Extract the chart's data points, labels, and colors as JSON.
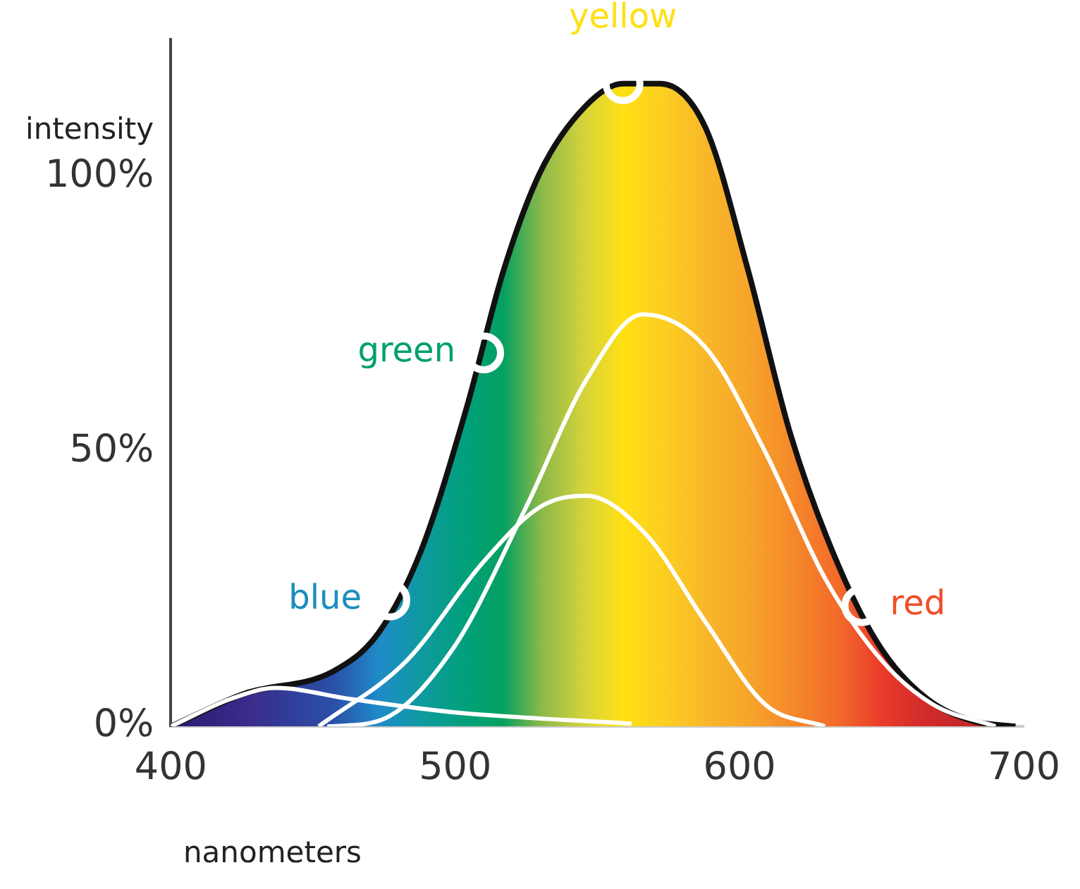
{
  "chart_data": {
    "type": "area",
    "xlabel": "nanometers",
    "ylabel": "intensity",
    "xlim": [
      400,
      700
    ],
    "ylim": [
      0,
      125
    ],
    "xticks": [
      400,
      500,
      600,
      700
    ],
    "yticks": [
      {
        "value": 0,
        "label": "0%"
      },
      {
        "value": 50,
        "label": "50%"
      },
      {
        "value": 100,
        "label": "100%"
      }
    ],
    "grid": false,
    "legend": false,
    "marker": "none",
    "series": [
      {
        "type": "area",
        "color": "#111111",
        "x": [
          400,
          426,
          457,
          473,
          488,
          504,
          517,
          530,
          546,
          559,
          572,
          588,
          603,
          618,
          635,
          650,
          666,
          682,
          697
        ],
        "values": [
          0,
          6,
          10,
          17,
          32,
          58,
          83,
          101,
          113,
          117,
          117,
          109,
          83,
          53,
          29,
          14,
          5,
          1,
          0
        ],
        "colors": [
          "#2a1a6e",
          "#3a2a8a",
          "#2a4fa8",
          "#1f8ac8",
          "#0f9aa0",
          "#00a07a",
          "#05a060",
          "#8ab84a",
          "#d8d43a",
          "#ffe014",
          "#fdd020",
          "#f8b82a",
          "#f7a52a",
          "#f58a2a",
          "#f26a2a",
          "#ea3a2a",
          "#d02a2a",
          "#c02828",
          "#b82828"
        ]
      },
      {
        "type": "line",
        "color": "#ffffff",
        "x": [
          455,
          473,
          499,
          525,
          546,
          566,
          588,
          609,
          630,
          650,
          668,
          690
        ],
        "values": [
          0,
          1,
          14,
          40,
          63,
          75,
          69,
          50,
          27,
          12,
          4,
          0
        ]
      },
      {
        "type": "line",
        "color": "#ffffff",
        "x": [
          452,
          483,
          510,
          530,
          546,
          567,
          588,
          609,
          630
        ],
        "values": [
          0,
          12,
          30,
          40,
          42,
          35,
          19,
          4,
          0
        ]
      },
      {
        "type": "line",
        "color": "#ffffff",
        "x": [
          400,
          421,
          437,
          463,
          499,
          562
        ],
        "values": [
          0,
          5,
          7,
          5,
          2.6,
          0.5
        ]
      }
    ],
    "annotations": [
      {
        "text": "blue",
        "x": 477,
        "y": 23
      },
      {
        "text": "green",
        "x": 510,
        "y": 68
      },
      {
        "text": "yellow",
        "x": 559,
        "y": 117
      },
      {
        "text": "red",
        "x": 643,
        "y": 22
      }
    ]
  }
}
